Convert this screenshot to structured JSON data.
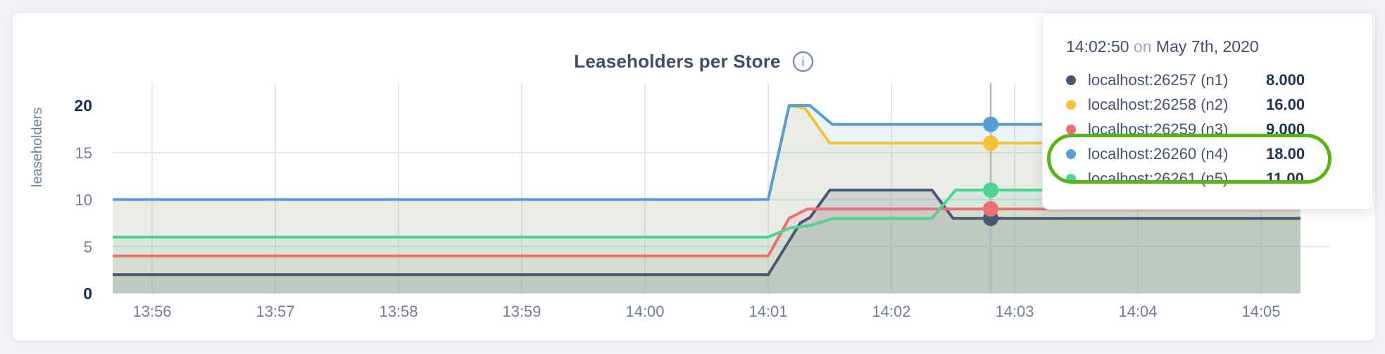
{
  "page": {
    "background": "#f1f3f8",
    "card_background": "#ffffff"
  },
  "chart": {
    "title": "Leaseholders per Store",
    "info_glyph": "i",
    "ylabel": "leaseholders"
  },
  "chart_data": {
    "type": "area",
    "title": "Leaseholders per Store",
    "ylabel": "leaseholders",
    "x_axis": {
      "unit": "time (HH:MM)",
      "tick_interval_minutes": 1,
      "ticks": [
        {
          "t": 0,
          "label": "13:56"
        },
        {
          "t": 1,
          "label": "13:57"
        },
        {
          "t": 2,
          "label": "13:58"
        },
        {
          "t": 3,
          "label": "13:59"
        },
        {
          "t": 4,
          "label": "14:00"
        },
        {
          "t": 5,
          "label": "14:01"
        },
        {
          "t": 6,
          "label": "14:02"
        },
        {
          "t": 7,
          "label": "14:03"
        },
        {
          "t": 8,
          "label": "14:04"
        },
        {
          "t": 9,
          "label": "14:05"
        }
      ]
    },
    "y_axis": {
      "ticks": [
        {
          "v": 0,
          "label": "0",
          "bold": true
        },
        {
          "v": 5,
          "label": "5",
          "bold": false
        },
        {
          "v": 10,
          "label": "10",
          "bold": false
        },
        {
          "v": 15,
          "label": "15",
          "bold": false
        },
        {
          "v": 20,
          "label": "20",
          "bold": true
        }
      ],
      "range": [
        0,
        22.4
      ],
      "gridlines": [
        5,
        10,
        15
      ]
    },
    "x_range": [
      -0.32,
      9.67
    ],
    "data_end_t": 9.32,
    "series": [
      {
        "id": "n1",
        "name": "localhost:26257 (n1)",
        "color": "#475872",
        "fill_opacity": 0.18,
        "points": [
          [
            -0.32,
            2
          ],
          [
            5.0,
            2
          ],
          [
            5.26,
            7.5
          ],
          [
            5.34,
            8.1
          ],
          [
            5.5,
            11
          ],
          [
            6.33,
            11
          ],
          [
            6.5,
            8
          ],
          [
            9.32,
            8
          ]
        ]
      },
      {
        "id": "n2",
        "name": "localhost:26258 (n2)",
        "color": "#f5c136",
        "fill_opacity": 0.12,
        "points": [
          [
            -0.32,
            10
          ],
          [
            5.0,
            10
          ],
          [
            5.17,
            20
          ],
          [
            5.3,
            19.7
          ],
          [
            5.5,
            16
          ],
          [
            9.32,
            16
          ]
        ]
      },
      {
        "id": "n3",
        "name": "localhost:26259 (n3)",
        "color": "#ec7072",
        "fill_opacity": 0.12,
        "points": [
          [
            -0.32,
            4
          ],
          [
            5.0,
            4
          ],
          [
            5.17,
            8
          ],
          [
            5.32,
            9
          ],
          [
            9.32,
            9
          ]
        ]
      },
      {
        "id": "n4",
        "name": "localhost:26260 (n4)",
        "color": "#569ed5",
        "fill_opacity": 0.12,
        "points": [
          [
            -0.32,
            10
          ],
          [
            5.0,
            10
          ],
          [
            5.17,
            20
          ],
          [
            5.34,
            20
          ],
          [
            5.52,
            18
          ],
          [
            9.32,
            18
          ]
        ]
      },
      {
        "id": "n5",
        "name": "localhost:26261 (n5)",
        "color": "#50d392",
        "fill_opacity": 0.12,
        "points": [
          [
            -0.32,
            6
          ],
          [
            5.0,
            6
          ],
          [
            5.18,
            7
          ],
          [
            5.33,
            7.2
          ],
          [
            5.53,
            8
          ],
          [
            6.33,
            8
          ],
          [
            6.52,
            11
          ],
          [
            9.32,
            11
          ]
        ]
      }
    ],
    "hover": {
      "t": 6.806,
      "time_label": "14:02:50",
      "values": {
        "n1": 8,
        "n2": 16,
        "n3": 9,
        "n4": 18,
        "n5": 11
      }
    }
  },
  "tooltip": {
    "time": "14:02:50",
    "on_word": "on",
    "date": "May 7th, 2020",
    "rows": [
      {
        "id": "n1",
        "name": "localhost:26257 (n1)",
        "value": "8.000",
        "color": "#475872"
      },
      {
        "id": "n2",
        "name": "localhost:26258 (n2)",
        "value": "16.00",
        "color": "#f5c136"
      },
      {
        "id": "n3",
        "name": "localhost:26259 (n3)",
        "value": "9.000",
        "color": "#ec7072"
      },
      {
        "id": "n4",
        "name": "localhost:26260 (n4)",
        "value": "18.00",
        "color": "#569ed5"
      },
      {
        "id": "n5",
        "name": "localhost:26261 (n5)",
        "value": "11.00",
        "color": "#50d392"
      }
    ],
    "highlighted_row_ids": [
      "n4",
      "n5"
    ],
    "highlight_color": "#55b514"
  }
}
